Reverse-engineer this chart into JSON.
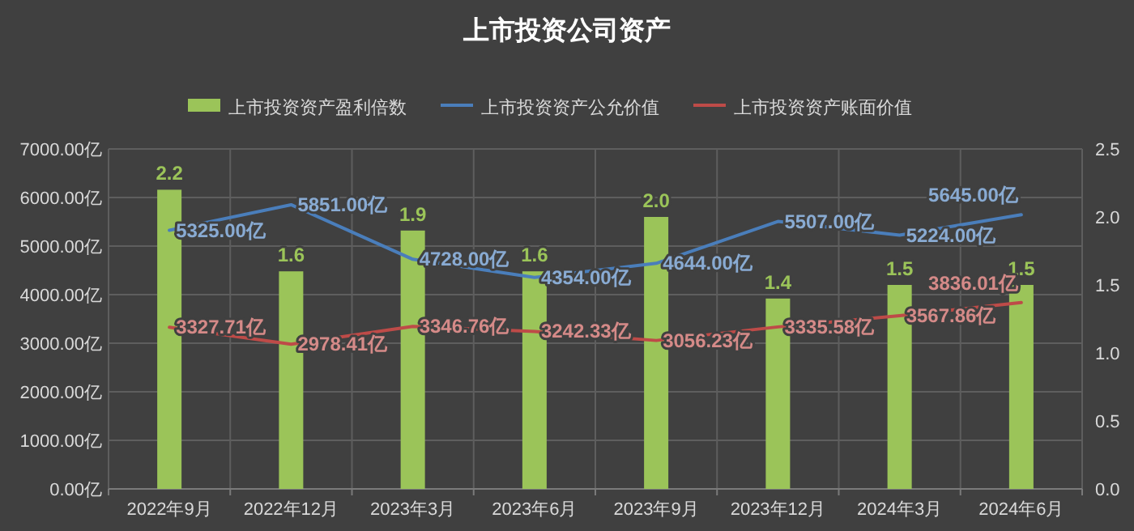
{
  "chart_data": {
    "type": "bar",
    "title": "上市投资公司资产",
    "categories": [
      "2022年9月",
      "2022年12月",
      "2023年3月",
      "2023年6月",
      "2023年9月",
      "2023年12月",
      "2024年3月",
      "2024年6月"
    ],
    "series": [
      {
        "name": "上市投资资产盈利倍数",
        "axis": "y2",
        "color": "#9bc459",
        "values": [
          2.2,
          1.6,
          1.9,
          1.6,
          2.0,
          1.4,
          1.5,
          1.5
        ],
        "value_labels": [
          "2.2",
          "1.6",
          "1.9",
          "1.6",
          "2.0",
          "1.4",
          "1.5",
          "1.5"
        ]
      },
      {
        "name": "上市投资资产公允价值",
        "type": "line",
        "color": "#4a7ebb",
        "values": [
          5325.0,
          5851.0,
          4728.0,
          4354.0,
          4644.0,
          5507.0,
          5224.0,
          5645.0
        ],
        "value_labels": [
          "5325.00亿",
          "5851.00亿",
          "4728.00亿",
          "4354.00亿",
          "4644.00亿",
          "5507.00亿",
          "5224.00亿",
          "5645.00亿"
        ]
      },
      {
        "name": "上市投资资产账面价值",
        "type": "line",
        "color": "#be4b48",
        "values": [
          3327.71,
          2978.41,
          3346.76,
          3242.33,
          3056.23,
          3335.58,
          3567.86,
          3836.01
        ],
        "value_labels": [
          "3327.71亿",
          "2978.41亿",
          "3346.76亿",
          "3242.33亿",
          "3056.23亿",
          "3335.58亿",
          "3567.86亿",
          "3836.01亿"
        ]
      }
    ],
    "ylim": [
      0,
      7000
    ],
    "yticks": [
      {
        "value": 0,
        "label": "0.00亿"
      },
      {
        "value": 1000,
        "label": "1000.00亿"
      },
      {
        "value": 2000,
        "label": "2000.00亿"
      },
      {
        "value": 3000,
        "label": "3000.00亿"
      },
      {
        "value": 4000,
        "label": "4000.00亿"
      },
      {
        "value": 5000,
        "label": "5000.00亿"
      },
      {
        "value": 6000,
        "label": "6000.00亿"
      },
      {
        "value": 7000,
        "label": "7000.00亿"
      }
    ],
    "y2lim": [
      0,
      2.5
    ],
    "y2ticks": [
      {
        "value": 0,
        "label": "0.0"
      },
      {
        "value": 0.5,
        "label": "0.5"
      },
      {
        "value": 1,
        "label": "1.0"
      },
      {
        "value": 1.5,
        "label": "1.5"
      },
      {
        "value": 2,
        "label": "2.0"
      },
      {
        "value": 2.5,
        "label": "2.5"
      }
    ],
    "grid": true,
    "legend": "top"
  }
}
